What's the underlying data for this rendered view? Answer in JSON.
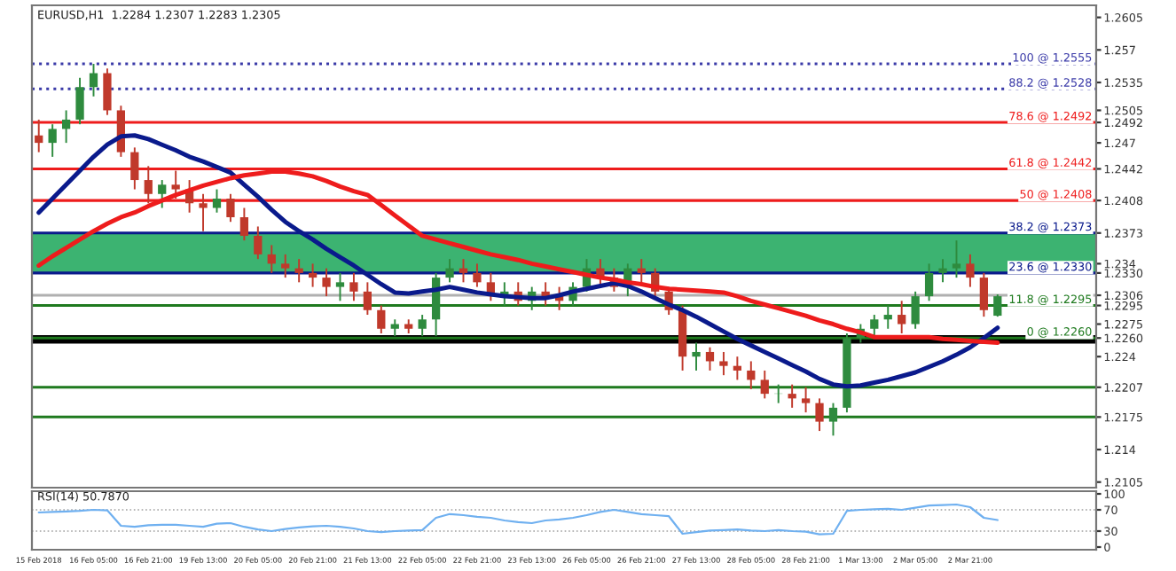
{
  "chart_data": [
    {
      "type": "candlestick",
      "title": "EURUSD,H1  1.2284 1.2307 1.2283 1.2305",
      "categories": [
        null,
        null,
        null,
        null,
        null,
        null,
        null,
        null,
        null,
        null,
        null,
        null,
        null,
        null,
        null,
        null,
        null,
        null,
        null,
        null,
        null,
        null,
        null,
        null,
        null,
        null,
        null,
        null,
        null,
        null,
        null,
        null,
        null,
        null,
        null,
        null,
        null,
        null,
        null,
        null,
        null,
        null,
        null,
        null,
        null,
        null,
        null,
        null,
        null,
        null,
        null,
        null,
        null,
        null,
        null,
        null,
        null,
        null,
        null,
        null,
        null,
        null,
        null,
        null,
        null,
        null,
        null,
        null,
        null,
        null,
        null
      ],
      "ohlc": [
        [
          1.2478,
          1.2495,
          1.246,
          1.247
        ],
        [
          1.247,
          1.249,
          1.2455,
          1.2485
        ],
        [
          1.2485,
          1.2505,
          1.247,
          1.2495
        ],
        [
          1.2495,
          1.254,
          1.249,
          1.253
        ],
        [
          1.253,
          1.2555,
          1.252,
          1.2545
        ],
        [
          1.2545,
          1.255,
          1.25,
          1.2505
        ],
        [
          1.2505,
          1.251,
          1.2455,
          1.246
        ],
        [
          1.246,
          1.2465,
          1.242,
          1.243
        ],
        [
          1.243,
          1.2445,
          1.2405,
          1.2415
        ],
        [
          1.2415,
          1.243,
          1.24,
          1.2425
        ],
        [
          1.2425,
          1.244,
          1.241,
          1.242
        ],
        [
          1.242,
          1.243,
          1.2395,
          1.2405
        ],
        [
          1.2405,
          1.2415,
          1.2375,
          1.24
        ],
        [
          1.24,
          1.242,
          1.2395,
          1.241
        ],
        [
          1.241,
          1.2415,
          1.2385,
          1.239
        ],
        [
          1.239,
          1.24,
          1.2365,
          1.237
        ],
        [
          1.237,
          1.238,
          1.2345,
          1.235
        ],
        [
          1.235,
          1.236,
          1.233,
          1.234
        ],
        [
          1.234,
          1.235,
          1.2325,
          1.2335
        ],
        [
          1.2335,
          1.2345,
          1.232,
          1.233
        ],
        [
          1.233,
          1.234,
          1.2315,
          1.2325
        ],
        [
          1.2325,
          1.2335,
          1.2305,
          1.2315
        ],
        [
          1.2315,
          1.233,
          1.23,
          1.232
        ],
        [
          1.232,
          1.233,
          1.23,
          1.231
        ],
        [
          1.231,
          1.232,
          1.2285,
          1.229
        ],
        [
          1.229,
          1.2295,
          1.2265,
          1.227
        ],
        [
          1.227,
          1.228,
          1.2262,
          1.2275
        ],
        [
          1.2275,
          1.228,
          1.2265,
          1.227
        ],
        [
          1.227,
          1.2285,
          1.2262,
          1.228
        ],
        [
          1.228,
          1.233,
          1.2262,
          1.2325
        ],
        [
          1.2325,
          1.2345,
          1.232,
          1.2335
        ],
        [
          1.2335,
          1.2345,
          1.232,
          1.233
        ],
        [
          1.233,
          1.234,
          1.2315,
          1.232
        ],
        [
          1.232,
          1.233,
          1.23,
          1.2305
        ],
        [
          1.2305,
          1.232,
          1.2295,
          1.231
        ],
        [
          1.231,
          1.232,
          1.2295,
          1.23
        ],
        [
          1.23,
          1.2315,
          1.229,
          1.231
        ],
        [
          1.231,
          1.232,
          1.2295,
          1.2305
        ],
        [
          1.2305,
          1.2315,
          1.229,
          1.23
        ],
        [
          1.23,
          1.232,
          1.2295,
          1.2315
        ],
        [
          1.2315,
          1.2345,
          1.231,
          1.2335
        ],
        [
          1.2335,
          1.2345,
          1.2315,
          1.2325
        ],
        [
          1.2325,
          1.2335,
          1.231,
          1.2315
        ],
        [
          1.2315,
          1.234,
          1.2305,
          1.2335
        ],
        [
          1.2335,
          1.2345,
          1.232,
          1.233
        ],
        [
          1.233,
          1.2335,
          1.2305,
          1.231
        ],
        [
          1.231,
          1.2315,
          1.2285,
          1.229
        ],
        [
          1.229,
          1.2295,
          1.2225,
          1.224
        ],
        [
          1.224,
          1.2255,
          1.2225,
          1.2245
        ],
        [
          1.2245,
          1.225,
          1.2225,
          1.2235
        ],
        [
          1.2235,
          1.2245,
          1.222,
          1.223
        ],
        [
          1.223,
          1.224,
          1.2215,
          1.2225
        ],
        [
          1.2225,
          1.2235,
          1.2205,
          1.2215
        ],
        [
          1.2215,
          1.2225,
          1.2195,
          1.22
        ],
        [
          1.22,
          1.221,
          1.219,
          1.22
        ],
        [
          1.22,
          1.221,
          1.2185,
          1.2195
        ],
        [
          1.2195,
          1.2207,
          1.218,
          1.219
        ],
        [
          1.219,
          1.2195,
          1.216,
          1.217
        ],
        [
          1.217,
          1.219,
          1.2155,
          1.2185
        ],
        [
          1.2185,
          1.2265,
          1.218,
          1.226
        ],
        [
          1.226,
          1.2275,
          1.2255,
          1.227
        ],
        [
          1.227,
          1.2285,
          1.2262,
          1.228
        ],
        [
          1.228,
          1.2295,
          1.227,
          1.2285
        ],
        [
          1.2285,
          1.23,
          1.2265,
          1.2275
        ],
        [
          1.2275,
          1.231,
          1.227,
          1.2305
        ],
        [
          1.2305,
          1.234,
          1.23,
          1.233
        ],
        [
          1.233,
          1.2345,
          1.232,
          1.2335
        ],
        [
          1.2335,
          1.2365,
          1.2325,
          1.234
        ],
        [
          1.234,
          1.235,
          1.2315,
          1.2325
        ],
        [
          1.2325,
          1.233,
          1.2283,
          1.229
        ],
        [
          1.2284,
          1.2307,
          1.2283,
          1.2305
        ]
      ],
      "colors": [
        "#c0392b",
        "#2e8b3e",
        "#2e8b3e",
        "#2e8b3e",
        "#2e8b3e",
        "#c0392b",
        "#c0392b",
        "#c0392b",
        "#c0392b",
        "#2e8b3e",
        "#c0392b",
        "#c0392b",
        "#c0392b",
        "#2e8b3e",
        "#c0392b",
        "#c0392b",
        "#c0392b",
        "#c0392b",
        "#c0392b",
        "#c0392b",
        "#c0392b",
        "#c0392b",
        "#2e8b3e",
        "#c0392b",
        "#c0392b",
        "#c0392b",
        "#2e8b3e",
        "#c0392b",
        "#2e8b3e",
        "#2e8b3e",
        "#2e8b3e",
        "#c0392b",
        "#c0392b",
        "#c0392b",
        "#2e8b3e",
        "#c0392b",
        "#2e8b3e",
        "#c0392b",
        "#c0392b",
        "#2e8b3e",
        "#2e8b3e",
        "#c0392b",
        "#c0392b",
        "#2e8b3e",
        "#c0392b",
        "#c0392b",
        "#c0392b",
        "#c0392b",
        "#2e8b3e",
        "#c0392b",
        "#c0392b",
        "#c0392b",
        "#c0392b",
        "#c0392b",
        "#2e8b3e",
        "#c0392b",
        "#c0392b",
        "#c0392b",
        "#2e8b3e",
        "#2e8b3e",
        "#2e8b3e",
        "#2e8b3e",
        "#2e8b3e",
        "#c0392b",
        "#2e8b3e",
        "#2e8b3e",
        "#2e8b3e",
        "#2e8b3e",
        "#c0392b",
        "#c0392b",
        "#2e8b3e"
      ],
      "series": [
        {
          "type": "line",
          "color": "#0a1a8c",
          "values": [
            1.2395,
            1.241,
            1.2425,
            1.244,
            1.2455,
            1.2468,
            1.2477,
            1.2478,
            1.2474,
            1.2468,
            1.2462,
            1.2455,
            1.245,
            1.2444,
            1.2438,
            1.2425,
            1.2412,
            1.2398,
            1.2385,
            1.2375,
            1.2366,
            1.2356,
            1.2347,
            1.2338,
            1.2328,
            1.2318,
            1.2309,
            1.2308,
            1.231,
            1.2312,
            1.2315,
            1.2312,
            1.2309,
            1.2307,
            1.2305,
            1.2304,
            1.2303,
            1.2303,
            1.2306,
            1.231,
            1.2313,
            1.2316,
            1.2319,
            1.2316,
            1.231,
            1.2303,
            1.2296,
            1.229,
            1.2283,
            1.2275,
            1.2267,
            1.2259,
            1.2252,
            1.2245,
            1.2238,
            1.2231,
            1.2224,
            1.2216,
            1.221,
            1.2208,
            1.2209,
            1.2212,
            1.2215,
            1.2219,
            1.2223,
            1.2229,
            1.2235,
            1.2242,
            1.225,
            1.226,
            1.2271
          ]
        },
        {
          "type": "line",
          "color": "#ee1c1c",
          "values": [
            1.2338,
            1.2348,
            1.2357,
            1.2366,
            1.2375,
            1.2383,
            1.239,
            1.2395,
            1.2402,
            1.2408,
            1.2414,
            1.2419,
            1.2424,
            1.2428,
            1.2432,
            1.2435,
            1.2437,
            1.2439,
            1.2439,
            1.2437,
            1.2434,
            1.2429,
            1.2423,
            1.2418,
            1.2414,
            1.2403,
            1.2392,
            1.2381,
            1.237,
            1.2366,
            1.2362,
            1.2358,
            1.2354,
            1.235,
            1.2347,
            1.2344,
            1.234,
            1.2337,
            1.2334,
            1.2331,
            1.2328,
            1.2325,
            1.2323,
            1.232,
            1.2318,
            1.2315,
            1.2313,
            1.2312,
            1.2311,
            1.231,
            1.2309,
            1.2305,
            1.23,
            1.2296,
            1.2292,
            1.2288,
            1.2284,
            1.2279,
            1.2275,
            1.227,
            1.2266,
            1.2261,
            1.2261,
            1.2261,
            1.2261,
            1.2261,
            1.2259,
            1.2258,
            1.2257,
            1.2256,
            1.2255
          ]
        }
      ],
      "ylim": [
        1.2099,
        1.2618
      ],
      "yticks": [
        1.2605,
        1.257,
        1.2535,
        1.2505,
        1.247,
        {
          "value": 1.2492,
          "label": "1.2492"
        },
        {
          "value": 1.2442,
          "label": "1.2442"
        },
        {
          "value": 1.2408,
          "label": "1.2408"
        },
        {
          "value": 1.2373,
          "label": "1.2373"
        },
        1.234,
        {
          "value": 1.233,
          "label": "1.2330"
        },
        {
          "value": 1.2306,
          "label": "1.2306"
        },
        {
          "value": 1.2295,
          "label": "1.2295"
        },
        1.2275,
        {
          "value": 1.226,
          "label": "1.2260"
        },
        1.224,
        {
          "value": 1.2207,
          "label": "1.2207"
        },
        {
          "value": 1.2175,
          "label": "1.2175"
        },
        1.214,
        1.2105
      ],
      "ref_lines": [
        {
          "axis": "y",
          "value": 1.2555,
          "label": "100 @ 1.2555",
          "color": "#3a3aa8",
          "line_style": "dotted"
        },
        {
          "axis": "y",
          "value": 1.2528,
          "label": "88.2 @ 1.2528",
          "color": "#3a3aa8",
          "line_style": "dotted"
        },
        {
          "axis": "y",
          "value": 1.2492,
          "label": "78.6 @ 1.2492",
          "color": "#ee1c1c",
          "line_style": "solid"
        },
        {
          "axis": "y",
          "value": 1.2442,
          "label": "61.8 @ 1.2442",
          "color": "#ee1c1c",
          "line_style": "solid"
        },
        {
          "axis": "y",
          "value": 1.2408,
          "label": "50 @ 1.2408",
          "color": "#ee1c1c",
          "line_style": "solid"
        },
        {
          "axis": "y",
          "value": 1.2373,
          "label": "38.2 @ 1.2373",
          "color": "#0a1a8c",
          "line_style": "solid"
        },
        {
          "axis": "y",
          "value": 1.233,
          "label": "23.6 @ 1.2330",
          "color": "#0a1a8c",
          "line_style": "solid"
        },
        {
          "axis": "y",
          "value": 1.2306,
          "color": "#b0b0b0",
          "line_style": "solid"
        },
        {
          "axis": "y",
          "value": 1.2295,
          "label": "11.8 @ 1.2295",
          "color": "#1e7a1e",
          "line_style": "solid"
        },
        {
          "axis": "y",
          "value": 1.226,
          "label": "0 @ 1.2260",
          "color": "#1e7a1e",
          "line_style": "solid"
        },
        {
          "axis": "y",
          "value": 1.2207,
          "color": "#1e7a1e",
          "line_style": "solid"
        },
        {
          "axis": "y",
          "value": 1.2175,
          "color": "#1e7a1e",
          "line_style": "solid"
        }
      ],
      "bands": [
        {
          "axis": "y",
          "from": 1.233,
          "to": 1.2373,
          "color": "#3cb371"
        },
        {
          "axis": "y",
          "from": 1.2254,
          "to": 1.2263,
          "color": "#000000"
        }
      ],
      "tick_labels": "y",
      "grid": false,
      "legend": false
    },
    {
      "type": "line",
      "title": "RSI(14) 50.7870",
      "categories": [
        "15 Feb 2018",
        null,
        null,
        null,
        "16 Feb 05:00",
        null,
        null,
        null,
        "16 Feb 21:00",
        null,
        null,
        null,
        "19 Feb 13:00",
        null,
        null,
        null,
        "20 Feb 05:00",
        null,
        null,
        null,
        "20 Feb 21:00",
        null,
        null,
        null,
        "21 Feb 13:00",
        null,
        null,
        null,
        "22 Feb 05:00",
        null,
        null,
        null,
        "22 Feb 21:00",
        null,
        null,
        null,
        "23 Feb 13:00",
        null,
        null,
        null,
        "26 Feb 05:00",
        null,
        null,
        null,
        "26 Feb 21:00",
        null,
        null,
        null,
        "27 Feb 13:00",
        null,
        null,
        null,
        "28 Feb 05:00",
        null,
        null,
        null,
        "28 Feb 21:00",
        null,
        null,
        null,
        "1 Mar 13:00",
        null,
        null,
        null,
        "2 Mar 05:00",
        null,
        null,
        null,
        "2 Mar 21:00",
        null,
        null
      ],
      "series": [
        {
          "color": "#6fb0f0",
          "values": [
            65,
            66,
            67,
            68,
            70,
            69,
            40,
            38,
            41,
            42,
            42,
            40,
            38,
            44,
            45,
            38,
            33,
            30,
            34,
            37,
            39,
            40,
            38,
            35,
            30,
            28,
            30,
            31,
            32,
            55,
            62,
            60,
            57,
            55,
            50,
            47,
            45,
            50,
            52,
            55,
            60,
            66,
            70,
            66,
            62,
            60,
            58,
            25,
            28,
            31,
            32,
            33,
            31,
            30,
            32,
            30,
            29,
            24,
            25,
            68,
            70,
            71,
            72,
            70,
            74,
            78,
            79,
            80,
            75,
            55,
            50.8
          ]
        }
      ],
      "ylim": [
        -5,
        105
      ],
      "yticks": [
        0,
        30,
        70,
        100
      ],
      "ref_lines": [
        {
          "axis": "y",
          "value": 70,
          "color": "#a0a0a0",
          "line_style": "dotted"
        },
        {
          "axis": "y",
          "value": 30,
          "color": "#a0a0a0",
          "line_style": "dotted"
        }
      ],
      "grid": false,
      "legend": false
    }
  ]
}
